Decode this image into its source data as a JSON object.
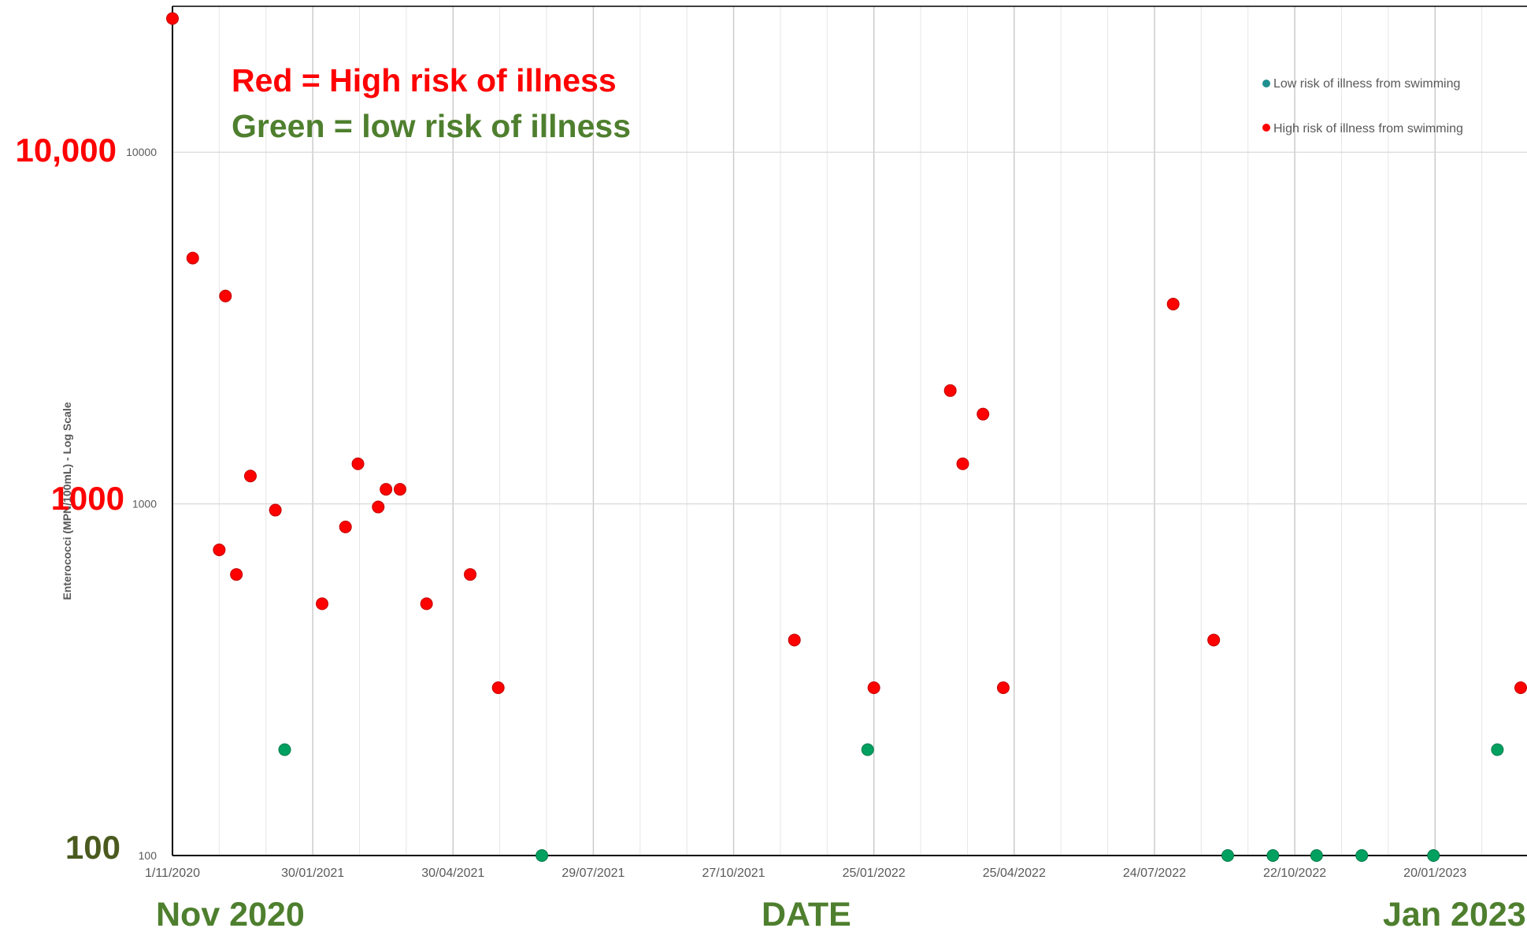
{
  "annotations": {
    "red_line": "Red = High risk of illness",
    "green_line": "Green = low risk of illness",
    "big_y_10000": "10,000",
    "big_y_1000": "1000",
    "big_y_100": "100",
    "nov_2020": "Nov 2020",
    "date": "DATE",
    "jan_2023": "Jan 2023"
  },
  "colors": {
    "high": "#ff0000",
    "low": "#00a060",
    "red_text": "#ff0000",
    "green_text": "#4e7f2e",
    "big_100": "#4a5a1e",
    "grid": "#d9d9d9",
    "axis": "#000000",
    "tick_text": "#595959",
    "legend_low": "#1f8f8f",
    "legend_high": "#ff0000"
  },
  "chart_data": {
    "type": "scatter",
    "xlabel": "",
    "ylabel": "Enterococci (MPN/100mL) - Log Scale",
    "y_scale": "log",
    "ylim": [
      100,
      26000
    ],
    "xlim": [
      "2020-11-01",
      "2023-03-20"
    ],
    "x_ticks": [
      "1/11/2020",
      "30/01/2021",
      "30/04/2021",
      "29/07/2021",
      "27/10/2021",
      "25/01/2022",
      "25/04/2022",
      "24/07/2022",
      "22/10/2022",
      "20/01/2023"
    ],
    "x_tick_dates": [
      "2020-11-01",
      "2021-01-30",
      "2021-04-30",
      "2021-07-29",
      "2021-10-27",
      "2022-01-25",
      "2022-04-25",
      "2022-07-24",
      "2022-10-22",
      "2023-01-20"
    ],
    "y_ticks": [
      "100",
      "1000",
      "10000"
    ],
    "y_tick_values": [
      100,
      1000,
      10000
    ],
    "grid": true,
    "legend_position": "top-right",
    "series": [
      {
        "name": "Low risk of illness from swimming",
        "points": [
          {
            "x": "2021-01-12",
            "y": 200
          },
          {
            "x": "2021-06-26",
            "y": 100
          },
          {
            "x": "2022-01-21",
            "y": 200
          },
          {
            "x": "2022-09-09",
            "y": 100
          },
          {
            "x": "2022-10-08",
            "y": 100
          },
          {
            "x": "2022-11-05",
            "y": 100
          },
          {
            "x": "2022-12-04",
            "y": 100
          },
          {
            "x": "2023-01-19",
            "y": 100
          },
          {
            "x": "2023-03-01",
            "y": 200
          }
        ]
      },
      {
        "name": "High risk of illness from swimming",
        "points": [
          {
            "x": "2020-11-01",
            "y": 24000
          },
          {
            "x": "2020-11-14",
            "y": 5000
          },
          {
            "x": "2020-12-01",
            "y": 740
          },
          {
            "x": "2020-12-05",
            "y": 3900
          },
          {
            "x": "2020-12-12",
            "y": 630
          },
          {
            "x": "2020-12-21",
            "y": 1200
          },
          {
            "x": "2021-01-06",
            "y": 960
          },
          {
            "x": "2021-02-05",
            "y": 520
          },
          {
            "x": "2021-02-20",
            "y": 860
          },
          {
            "x": "2021-02-28",
            "y": 1300
          },
          {
            "x": "2021-03-13",
            "y": 980
          },
          {
            "x": "2021-03-18",
            "y": 1100
          },
          {
            "x": "2021-03-27",
            "y": 1100
          },
          {
            "x": "2021-04-13",
            "y": 520
          },
          {
            "x": "2021-05-11",
            "y": 630
          },
          {
            "x": "2021-05-29",
            "y": 300
          },
          {
            "x": "2021-12-05",
            "y": 410
          },
          {
            "x": "2022-01-25",
            "y": 300
          },
          {
            "x": "2022-03-15",
            "y": 2100
          },
          {
            "x": "2022-03-23",
            "y": 1300
          },
          {
            "x": "2022-04-05",
            "y": 1800
          },
          {
            "x": "2022-04-18",
            "y": 300
          },
          {
            "x": "2022-08-05",
            "y": 3700
          },
          {
            "x": "2022-08-31",
            "y": 410
          },
          {
            "x": "2023-03-20",
            "y": 300
          }
        ]
      }
    ]
  }
}
